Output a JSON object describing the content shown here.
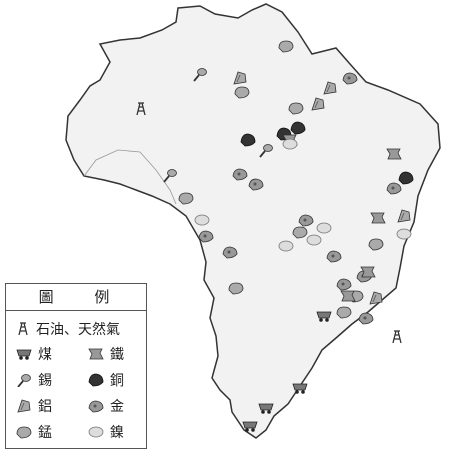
{
  "legend": {
    "title": "圖 例",
    "items": [
      {
        "key": "oil",
        "label": "石油、天然氣",
        "icon": "oil-derrick-icon"
      },
      {
        "key": "coal",
        "label": "煤",
        "icon": "coal-cart-icon"
      },
      {
        "key": "iron",
        "label": "鐵",
        "icon": "iron-ore-icon"
      },
      {
        "key": "tin",
        "label": "錫",
        "icon": "tin-icon"
      },
      {
        "key": "copper",
        "label": "銅",
        "icon": "copper-icon"
      },
      {
        "key": "aluminum",
        "label": "鋁",
        "icon": "aluminum-icon"
      },
      {
        "key": "gold",
        "label": "金",
        "icon": "gold-icon"
      },
      {
        "key": "manganese",
        "label": "錳",
        "icon": "manganese-icon"
      },
      {
        "key": "nickel",
        "label": "鎳",
        "icon": "nickel-icon"
      }
    ]
  },
  "colors": {
    "land": "#f2f2f2",
    "border": "#333333",
    "symbol": "#888888",
    "copper": "#333333",
    "nickel": "#cccccc"
  }
}
